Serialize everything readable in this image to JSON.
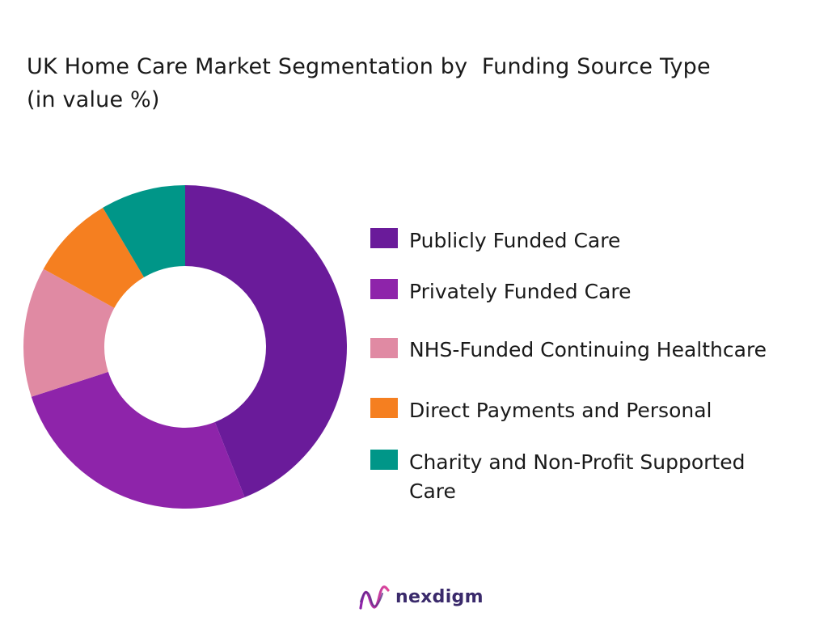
{
  "chart_data": {
    "type": "pie",
    "title_lines": [
      "UK Home Care Market Segmentation by  Funding Source Type",
      "(in value %)"
    ],
    "donut": true,
    "categories": [
      "Publicly Funded Care",
      "Privately Funded Care",
      "NHS-Funded Continuing Healthcare",
      "Direct Payments and Personal",
      "Charity and Non-Profit Supported Care"
    ],
    "legend_lines": [
      [
        "Publicly Funded Care"
      ],
      [
        "Privately Funded Care"
      ],
      [
        "NHS-Funded Continuing Healthcare"
      ],
      [
        "Direct Payments and Personal"
      ],
      [
        "Charity and Non-Profit Supported",
        "Care"
      ]
    ],
    "values": [
      44,
      26,
      13,
      8.5,
      8.5
    ],
    "colors": [
      "#6a1b9a",
      "#8e24aa",
      "#e08aa3",
      "#f57f20",
      "#009688"
    ],
    "legend_position": "right"
  },
  "brand": {
    "name": "nexdigm",
    "color": "#3a2a6b"
  }
}
